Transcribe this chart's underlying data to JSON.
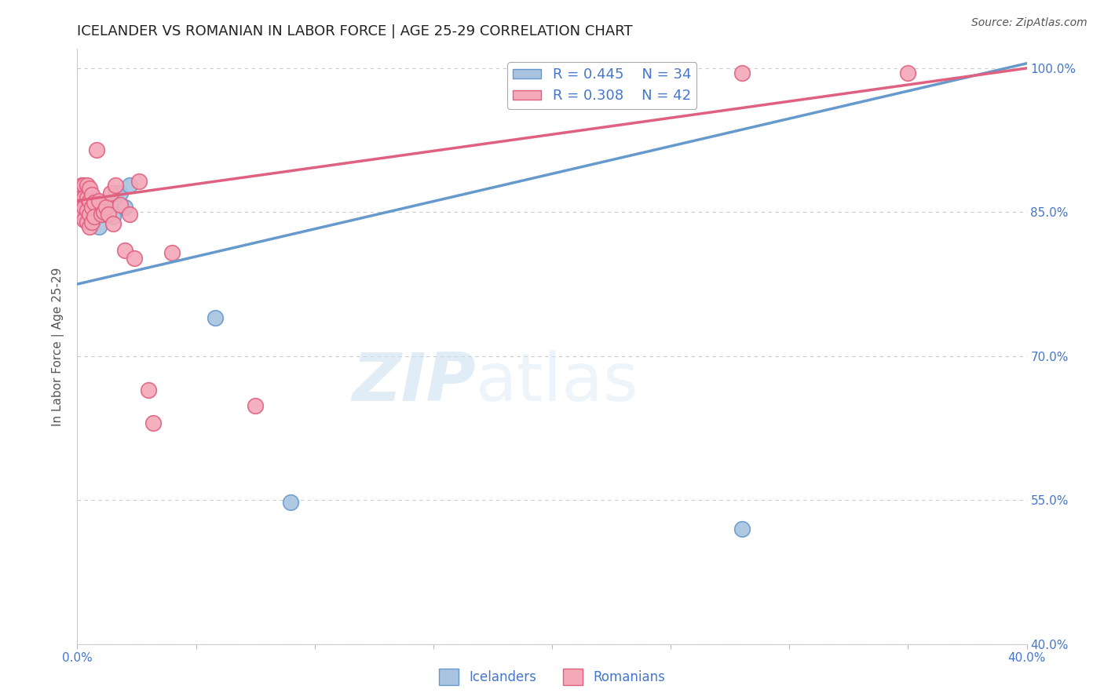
{
  "title": "ICELANDER VS ROMANIAN IN LABOR FORCE | AGE 25-29 CORRELATION CHART",
  "source": "Source: ZipAtlas.com",
  "ylabel": "In Labor Force | Age 25-29",
  "ylabel_ticks": [
    "100.0%",
    "85.0%",
    "70.0%",
    "55.0%",
    "40.0%"
  ],
  "ylabel_tick_vals": [
    1.0,
    0.85,
    0.7,
    0.55,
    0.4
  ],
  "xmin": 0.0,
  "xmax": 0.4,
  "ymin": 0.4,
  "ymax": 1.02,
  "r_icelander": 0.445,
  "n_icelander": 34,
  "r_romanian": 0.308,
  "n_romanian": 42,
  "icelander_color": "#a8c4e0",
  "romanian_color": "#f4a8b8",
  "icelander_edge": "#6699cc",
  "romanian_edge": "#e06080",
  "trend_icelander_color": "#6699cc",
  "trend_romanian_color": "#e06080",
  "icel_trend_x": [
    0.0,
    0.4
  ],
  "icel_trend_y": [
    0.775,
    1.005
  ],
  "rom_trend_x": [
    0.0,
    0.4
  ],
  "rom_trend_y": [
    0.862,
    1.0
  ],
  "icelanders_x": [
    0.001,
    0.001,
    0.002,
    0.002,
    0.003,
    0.003,
    0.003,
    0.004,
    0.004,
    0.004,
    0.005,
    0.005,
    0.005,
    0.006,
    0.006,
    0.006,
    0.007,
    0.007,
    0.008,
    0.008,
    0.009,
    0.01,
    0.011,
    0.012,
    0.013,
    0.014,
    0.015,
    0.016,
    0.018,
    0.02,
    0.022,
    0.058,
    0.09,
    0.28
  ],
  "icelanders_y": [
    0.862,
    0.848,
    0.875,
    0.855,
    0.868,
    0.858,
    0.845,
    0.87,
    0.858,
    0.845,
    0.862,
    0.85,
    0.84,
    0.865,
    0.853,
    0.84,
    0.858,
    0.845,
    0.862,
    0.848,
    0.835,
    0.848,
    0.858,
    0.855,
    0.848,
    0.855,
    0.845,
    0.87,
    0.87,
    0.855,
    0.878,
    0.74,
    0.548,
    0.52
  ],
  "romanians_x": [
    0.001,
    0.001,
    0.002,
    0.002,
    0.002,
    0.003,
    0.003,
    0.003,
    0.003,
    0.004,
    0.004,
    0.004,
    0.004,
    0.005,
    0.005,
    0.005,
    0.005,
    0.006,
    0.006,
    0.006,
    0.007,
    0.007,
    0.008,
    0.009,
    0.01,
    0.011,
    0.012,
    0.013,
    0.014,
    0.015,
    0.016,
    0.018,
    0.02,
    0.022,
    0.024,
    0.026,
    0.03,
    0.032,
    0.04,
    0.075,
    0.28,
    0.35
  ],
  "romanians_y": [
    0.87,
    0.858,
    0.878,
    0.865,
    0.85,
    0.878,
    0.865,
    0.855,
    0.842,
    0.878,
    0.865,
    0.852,
    0.84,
    0.875,
    0.862,
    0.848,
    0.835,
    0.868,
    0.855,
    0.84,
    0.86,
    0.845,
    0.915,
    0.862,
    0.848,
    0.85,
    0.855,
    0.848,
    0.87,
    0.838,
    0.878,
    0.858,
    0.81,
    0.848,
    0.802,
    0.882,
    0.665,
    0.63,
    0.808,
    0.648,
    0.995,
    0.995
  ],
  "watermark_zip": "ZIP",
  "watermark_atlas": "atlas",
  "background_color": "#ffffff",
  "grid_color": "#cccccc",
  "title_color": "#222222",
  "tick_color": "#4477cc",
  "legend_color": "#4477cc",
  "source_color": "#555555"
}
